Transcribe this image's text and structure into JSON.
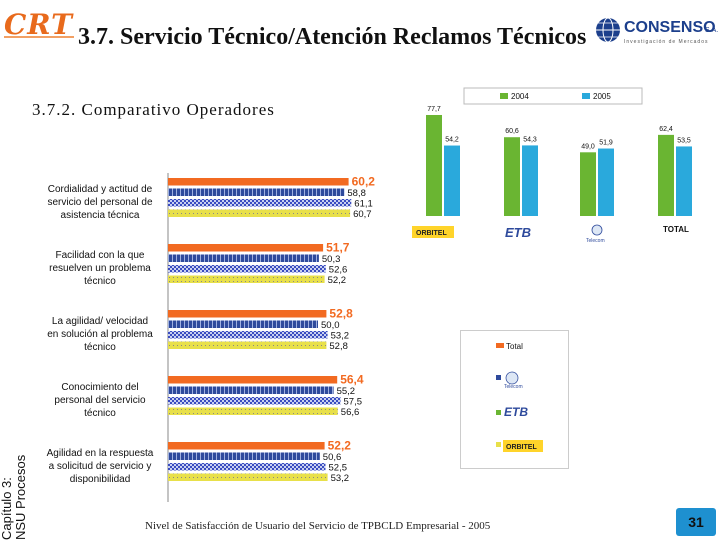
{
  "header": {
    "logo_text": "CRT",
    "title": "3.7. Servicio Técnico/Atención Reclamos Técnicos",
    "subtitle": "3.7.2. Comparativo Operadores",
    "brand_name": "CONSENSO",
    "brand_suffix": "S.A.",
    "brand_tagline": "Investigación de Mercados"
  },
  "sidebar": {
    "label_line1": "Capítulo 3:",
    "label_line2": "NSU Procesos"
  },
  "footer": {
    "text": "Nivel de Satisfacción de Usuario del Servicio de TPBCLD Empresarial - 2005",
    "page_number": "31"
  },
  "colors": {
    "total": "#f26a21",
    "telecom": "#2e4a9c",
    "etb": "#3a4cc0",
    "orbitel": "#e8e04a",
    "green": "#6ab532",
    "cyan": "#2aa9dc",
    "page_num_bg": "#1e90d0"
  },
  "chart_data": [
    {
      "type": "bar",
      "orientation": "horizontal",
      "title": "Comparativo Operadores",
      "categories": [
        "Cordialidad y actitud de servicio del personal de asistencia técnica",
        "Facilidad con la que resuelven un problema técnico",
        "La agilidad/ velocidad en solución al problema técnico",
        "Conocimiento del personal del servicio técnico",
        "Agilidad en la respuesta a solicitud de servicio y disponibilidad"
      ],
      "category_lines": [
        [
          "Cordialidad y actitud de",
          "servicio del personal de",
          "asistencia técnica"
        ],
        [
          "Facilidad con la que",
          "resuelven un problema",
          "técnico"
        ],
        [
          "La agilidad/ velocidad",
          "en solución al problema",
          "técnico"
        ],
        [
          "Conocimiento del",
          "personal del servicio",
          "técnico"
        ],
        [
          "Agilidad en la respuesta",
          "a solicitud de servicio y",
          "disponibilidad"
        ]
      ],
      "series": [
        {
          "name": "Total",
          "values": [
            60.2,
            51.7,
            52.8,
            56.4,
            52.2
          ],
          "labels": [
            "60,2",
            "51,7",
            "52,8",
            "56,4",
            "52,2"
          ]
        },
        {
          "name": "Telecom",
          "values": [
            58.8,
            50.3,
            50.0,
            55.2,
            50.6
          ],
          "labels": [
            "58,8",
            "50,3",
            "50,0",
            "55,2",
            "50,6"
          ]
        },
        {
          "name": "ETB",
          "values": [
            61.1,
            52.6,
            53.2,
            57.5,
            52.5
          ],
          "labels": [
            "61,1",
            "52,6",
            "53,2",
            "57,5",
            "52,5"
          ]
        },
        {
          "name": "Orbitel",
          "values": [
            60.7,
            52.2,
            52.8,
            56.6,
            53.2
          ],
          "labels": [
            "60,7",
            "52,2",
            "52,8",
            "56,6",
            "53,2"
          ]
        }
      ],
      "legend": [
        "Total",
        "Telecom",
        "ETB",
        "ORBITEL"
      ],
      "legend_position": "right",
      "xlim": [
        0,
        62
      ]
    },
    {
      "type": "bar",
      "orientation": "vertical",
      "categories": [
        "ORBITEL",
        "ETB",
        "Telecom",
        "TOTAL"
      ],
      "series": [
        {
          "name": "2004",
          "values": [
            77.7,
            60.6,
            49.0,
            62.4
          ],
          "labels": [
            "77,7",
            "60,6",
            "49,0",
            "62,4"
          ]
        },
        {
          "name": "2005",
          "values": [
            54.2,
            54.3,
            51.9,
            53.5
          ],
          "labels": [
            "54,2",
            "54,3",
            "51,9",
            "53,5"
          ]
        }
      ],
      "legend": [
        "2004",
        "2005"
      ],
      "legend_position": "top",
      "ylim": [
        0,
        80
      ]
    }
  ]
}
